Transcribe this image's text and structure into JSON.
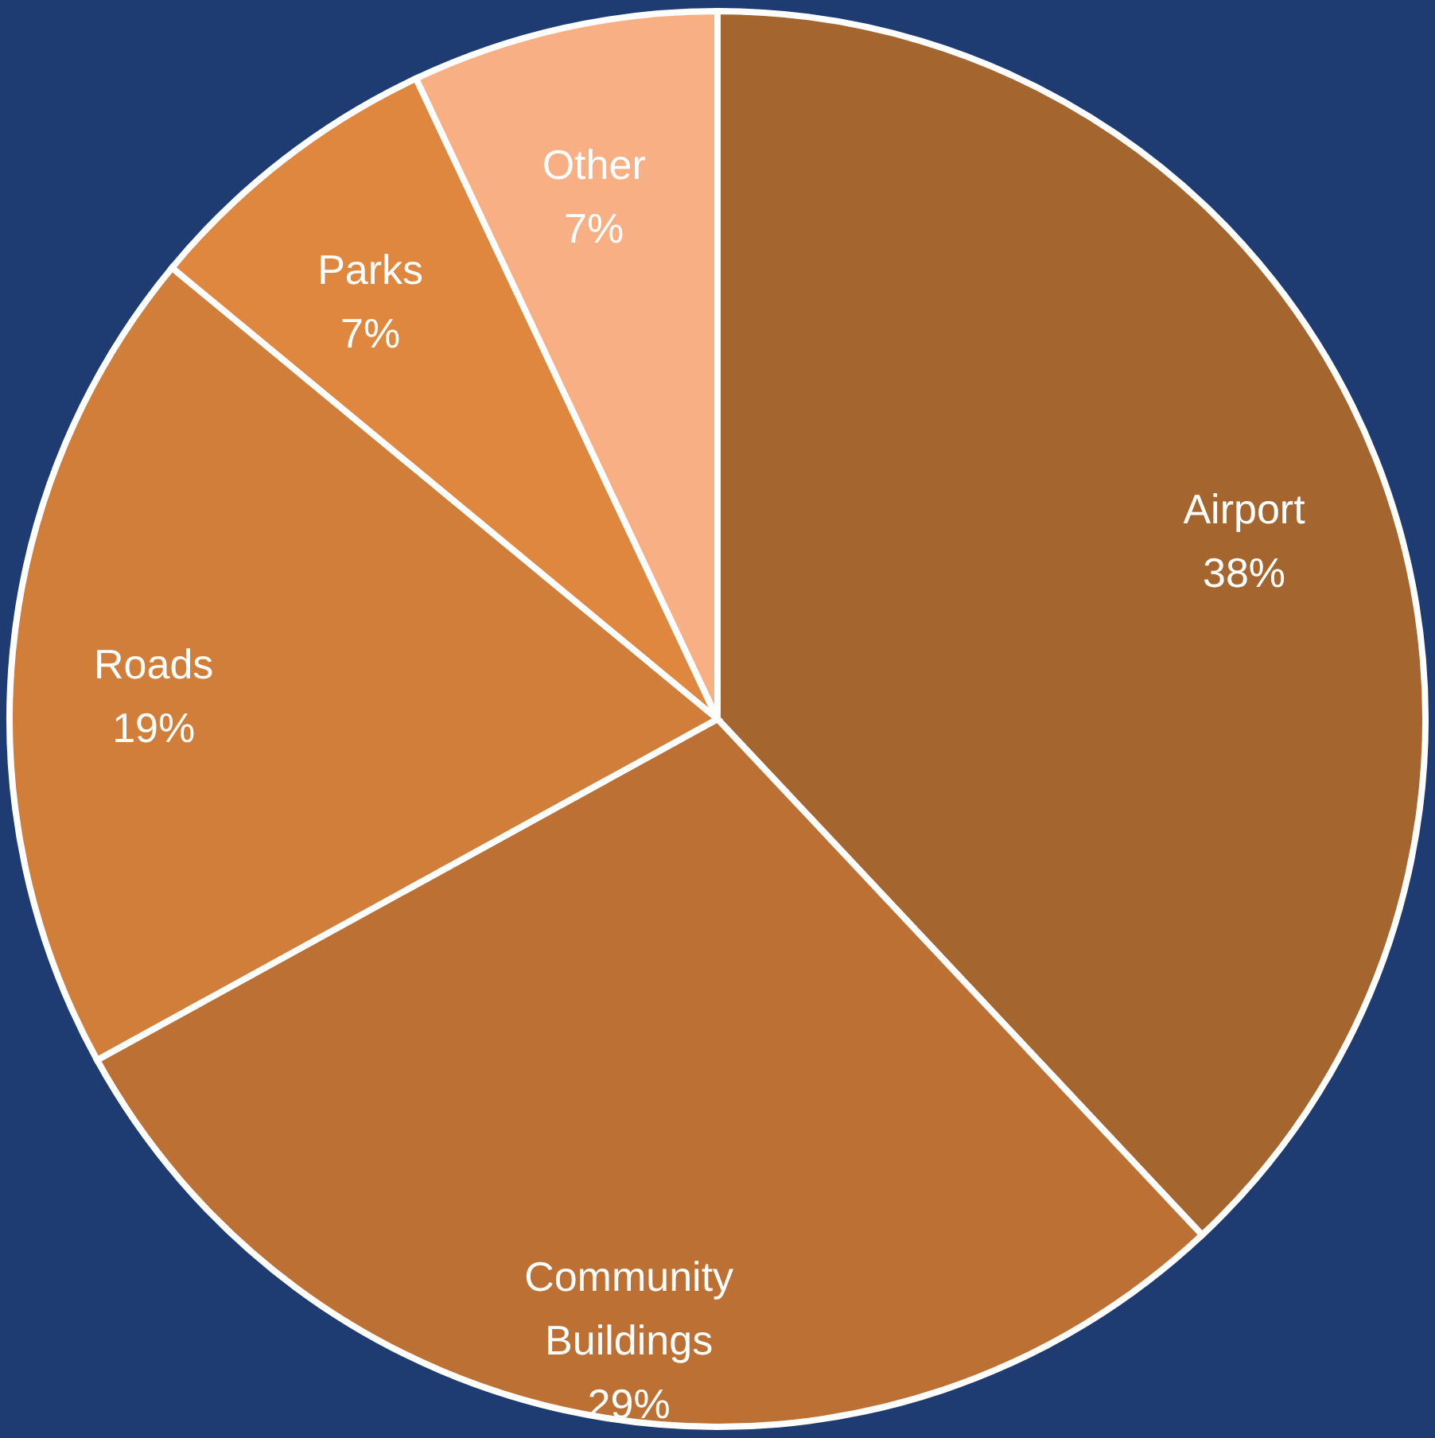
{
  "chart_data": {
    "type": "pie",
    "categories": [
      "Airport",
      "Community Buildings",
      "Roads",
      "Parks",
      "Other"
    ],
    "values": [
      38,
      29,
      19,
      7,
      7
    ],
    "value_labels": [
      "38%",
      "29%",
      "19%",
      "7%",
      "7%"
    ],
    "colors": [
      "#a5652e",
      "#bc7033",
      "#d07e3a",
      "#df873e",
      "#f8af84"
    ]
  }
}
